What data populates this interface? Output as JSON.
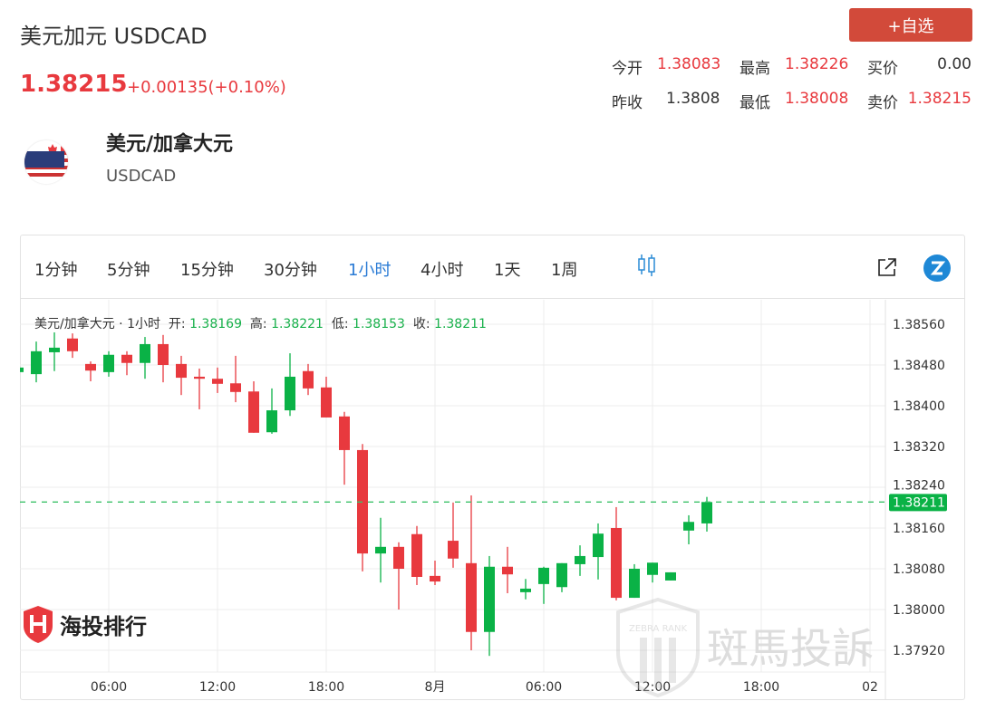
{
  "header": {
    "title": "美元加元 USDCAD",
    "price": "1.38215",
    "change": "+0.00135(+0.10%)",
    "watch_button": "+自选"
  },
  "stats": [
    {
      "label": "今开",
      "value": "1.38083",
      "color": "red"
    },
    {
      "label": "最高",
      "value": "1.38226",
      "color": "red"
    },
    {
      "label": "买价",
      "value": "0.00",
      "color": "dark"
    },
    {
      "label": "昨收",
      "value": "1.3808",
      "color": "dark"
    },
    {
      "label": "最低",
      "value": "1.38008",
      "color": "red"
    },
    {
      "label": "卖价",
      "value": "1.38215",
      "color": "red"
    }
  ],
  "instrument": {
    "name": "美元/加拿大元",
    "code": "USDCAD",
    "icon": "us-canada-flag-icon"
  },
  "toolbar": {
    "timeframes": [
      "1分钟",
      "5分钟",
      "15分钟",
      "30分钟",
      "1小时",
      "4小时",
      "1天",
      "1周"
    ],
    "active": "1小时",
    "icons": [
      "candlestick-icon",
      "external-link-icon",
      "zebra-logo-icon"
    ]
  },
  "legend": {
    "name": "美元/加拿大元",
    "dot": "·",
    "interval": "1小时",
    "open_label": "开:",
    "open": "1.38169",
    "high_label": "高:",
    "high": "1.38221",
    "low_label": "低:",
    "low": "1.38153",
    "close_label": "收:",
    "close": "1.38211"
  },
  "watermarks": {
    "left": "海投排行",
    "right": "斑馬投訴",
    "right_badge": "ZEBRA RANK"
  },
  "colors": {
    "up": "#0ab246",
    "down": "#e8393e",
    "accent": "#2a7bd5",
    "button": "#d24a3a"
  },
  "chart_data": {
    "type": "candlestick",
    "y_ticks": [
      "1.38560",
      "1.38480",
      "1.38400",
      "1.38320",
      "1.38240",
      "1.38160",
      "1.38080",
      "1.38000",
      "1.37920"
    ],
    "x_ticks": [
      "06:00",
      "12:00",
      "18:00",
      "8月",
      "06:00",
      "12:00",
      "18:00",
      "02"
    ],
    "last_price": "1.38211",
    "grid": true,
    "candles": [
      {
        "t": "01:00",
        "o": 1.38466,
        "h": 1.3848,
        "l": 1.3846,
        "c": 1.38475
      },
      {
        "t": "02:00",
        "o": 1.38462,
        "h": 1.38526,
        "l": 1.38446,
        "c": 1.38507
      },
      {
        "t": "03:00",
        "o": 1.38505,
        "h": 1.38544,
        "l": 1.38468,
        "c": 1.38514
      },
      {
        "t": "04:00",
        "o": 1.38532,
        "h": 1.38542,
        "l": 1.38494,
        "c": 1.38507
      },
      {
        "t": "05:00",
        "o": 1.38482,
        "h": 1.38487,
        "l": 1.38448,
        "c": 1.38469
      },
      {
        "t": "06:00",
        "o": 1.38466,
        "h": 1.38507,
        "l": 1.38457,
        "c": 1.385
      },
      {
        "t": "07:00",
        "o": 1.385,
        "h": 1.38507,
        "l": 1.3846,
        "c": 1.38484
      },
      {
        "t": "08:00",
        "o": 1.38484,
        "h": 1.38535,
        "l": 1.38453,
        "c": 1.38521
      },
      {
        "t": "09:00",
        "o": 1.38521,
        "h": 1.38539,
        "l": 1.38446,
        "c": 1.3848
      },
      {
        "t": "10:00",
        "o": 1.38482,
        "h": 1.38498,
        "l": 1.38421,
        "c": 1.38455
      },
      {
        "t": "11:00",
        "o": 1.38457,
        "h": 1.38473,
        "l": 1.38393,
        "c": 1.38453
      },
      {
        "t": "12:00",
        "o": 1.38453,
        "h": 1.38475,
        "l": 1.38425,
        "c": 1.38443
      },
      {
        "t": "13:00",
        "o": 1.38444,
        "h": 1.38498,
        "l": 1.38407,
        "c": 1.38427
      },
      {
        "t": "14:00",
        "o": 1.38428,
        "h": 1.38448,
        "l": 1.38347,
        "c": 1.38347
      },
      {
        "t": "15:00",
        "o": 1.38348,
        "h": 1.38434,
        "l": 1.38345,
        "c": 1.38391
      },
      {
        "t": "16:00",
        "o": 1.38391,
        "h": 1.38503,
        "l": 1.3838,
        "c": 1.38457
      },
      {
        "t": "17:00",
        "o": 1.38468,
        "h": 1.38482,
        "l": 1.38421,
        "c": 1.38434
      },
      {
        "t": "18:00",
        "o": 1.38436,
        "h": 1.38457,
        "l": 1.38377,
        "c": 1.38377
      },
      {
        "t": "19:00",
        "o": 1.38379,
        "h": 1.38388,
        "l": 1.38245,
        "c": 1.38313
      },
      {
        "t": "20:00",
        "o": 1.38313,
        "h": 1.38325,
        "l": 1.38075,
        "c": 1.3811
      },
      {
        "t": "21:00",
        "o": 1.3811,
        "h": 1.3818,
        "l": 1.38053,
        "c": 1.38123
      },
      {
        "t": "22:00",
        "o": 1.38123,
        "h": 1.38132,
        "l": 1.38,
        "c": 1.3808
      },
      {
        "t": "23:00",
        "o": 1.38148,
        "h": 1.38164,
        "l": 1.38048,
        "c": 1.38064
      },
      {
        "t": "00:00",
        "o": 1.38066,
        "h": 1.38096,
        "l": 1.38048,
        "c": 1.38055
      },
      {
        "t": "01:00",
        "o": 1.38135,
        "h": 1.3821,
        "l": 1.38082,
        "c": 1.381
      },
      {
        "t": "02:00",
        "o": 1.38091,
        "h": 1.38224,
        "l": 1.3792,
        "c": 1.37956
      },
      {
        "t": "03:00",
        "o": 1.37956,
        "h": 1.38105,
        "l": 1.37909,
        "c": 1.38084
      },
      {
        "t": "04:00",
        "o": 1.38084,
        "h": 1.38123,
        "l": 1.38032,
        "c": 1.38069
      },
      {
        "t": "05:00",
        "o": 1.38034,
        "h": 1.3806,
        "l": 1.3802,
        "c": 1.38041
      },
      {
        "t": "06:00",
        "o": 1.3805,
        "h": 1.38084,
        "l": 1.38011,
        "c": 1.38082
      },
      {
        "t": "07:00",
        "o": 1.38044,
        "h": 1.38091,
        "l": 1.38034,
        "c": 1.38091
      },
      {
        "t": "08:00",
        "o": 1.38089,
        "h": 1.38126,
        "l": 1.38066,
        "c": 1.38105
      },
      {
        "t": "09:00",
        "o": 1.38103,
        "h": 1.38169,
        "l": 1.38059,
        "c": 1.38149
      },
      {
        "t": "10:00",
        "o": 1.3816,
        "h": 1.38201,
        "l": 1.38018,
        "c": 1.38023
      },
      {
        "t": "11:00",
        "o": 1.38023,
        "h": 1.38089,
        "l": 1.38023,
        "c": 1.3808
      },
      {
        "t": "12:00",
        "o": 1.38068,
        "h": 1.38092,
        "l": 1.38053,
        "c": 1.38092
      },
      {
        "t": "13:00",
        "o": 1.38057,
        "h": 1.38073,
        "l": 1.38057,
        "c": 1.38073
      },
      {
        "t": "14:00",
        "o": 1.38155,
        "h": 1.38185,
        "l": 1.38128,
        "c": 1.38172
      },
      {
        "t": "15:00",
        "o": 1.38169,
        "h": 1.38221,
        "l": 1.38153,
        "c": 1.38211
      }
    ]
  }
}
